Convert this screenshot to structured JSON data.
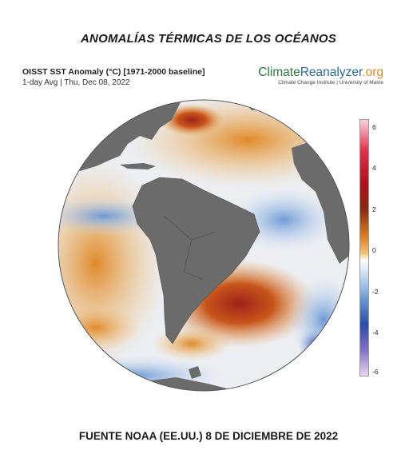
{
  "title": "ANOMALÍAS TÉRMICAS DE LOS OCÉANOS",
  "map": {
    "title": "OISST SST Anomaly (°C) [1971-2000 baseline]",
    "subtitle": "1-day Avg | Thu, Dec 08, 2022"
  },
  "brand": {
    "name_part1": "Climate",
    "name_part2": "Reanalyzer",
    "name_part3": ".org",
    "subtitle": "Climate Change Institute | University of Maine"
  },
  "colorbar": {
    "ticks": [
      "6",
      "4",
      "2",
      "0",
      "-2",
      "-4",
      "-6"
    ]
  },
  "footer": "FUENTE NOAA (EE.UU.) 8 DE DICIEMBRE DE 2022"
}
